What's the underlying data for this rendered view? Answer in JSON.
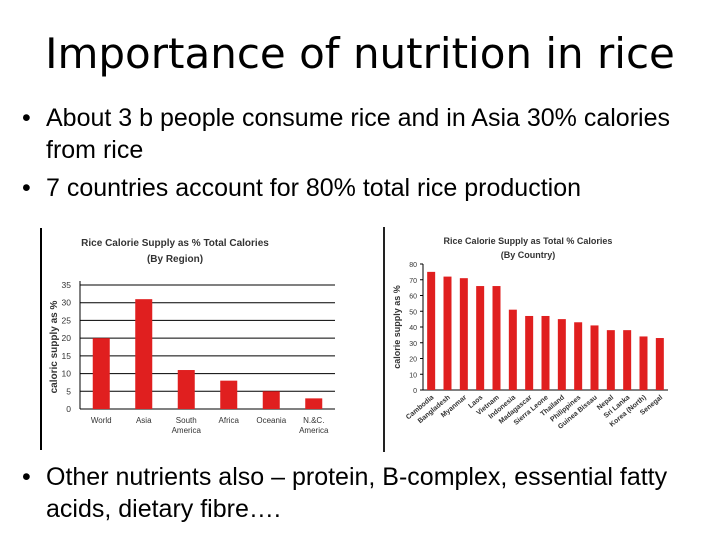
{
  "slide": {
    "title": "Importance of nutrition in rice",
    "bullets_top": [
      "About 3 b people consume rice and in Asia 30% calories from rice",
      "7 countries account for 80% total rice production"
    ],
    "bullets_bottom": [
      "Other nutrients also – protein, B-complex, essential fatty acids, dietary fibre…."
    ],
    "bullet_glyph": "•"
  },
  "colors": {
    "bar": "#e01f1f",
    "title_text": "#000000"
  },
  "chart_data": [
    {
      "type": "bar",
      "title": "Rice Calorie Supply as % Total Calories",
      "subtitle": "(By Region)",
      "xlabel": "",
      "ylabel": "caloric supply as %",
      "categories": [
        "World",
        "Asia",
        "South America",
        "Africa",
        "Oceania",
        "N.&C. America"
      ],
      "values": [
        20,
        31,
        11,
        8,
        5,
        3
      ],
      "ylim": [
        0,
        35
      ],
      "yticks": [
        0,
        5,
        10,
        15,
        20,
        25,
        30,
        35
      ],
      "grid": true
    },
    {
      "type": "bar",
      "title": "Rice Calorie Supply as Total % Calories",
      "subtitle": "(By Country)",
      "xlabel": "",
      "ylabel": "calorie supply as %",
      "categories": [
        "Cambodia",
        "Bangladesh",
        "Myanmar",
        "Laos",
        "Vietnam",
        "Indonesia",
        "Madagascar",
        "Sierra Leone",
        "Thailand",
        "Philippines",
        "Guinea Bissau",
        "Nepal",
        "Sri Lanka",
        "Korea (North)",
        "Senegal"
      ],
      "values": [
        75,
        72,
        71,
        66,
        66,
        51,
        47,
        47,
        45,
        43,
        41,
        38,
        38,
        34,
        33
      ],
      "ylim": [
        0,
        80
      ],
      "yticks": [
        0,
        10,
        20,
        30,
        40,
        50,
        60,
        70,
        80
      ],
      "grid": false
    }
  ]
}
